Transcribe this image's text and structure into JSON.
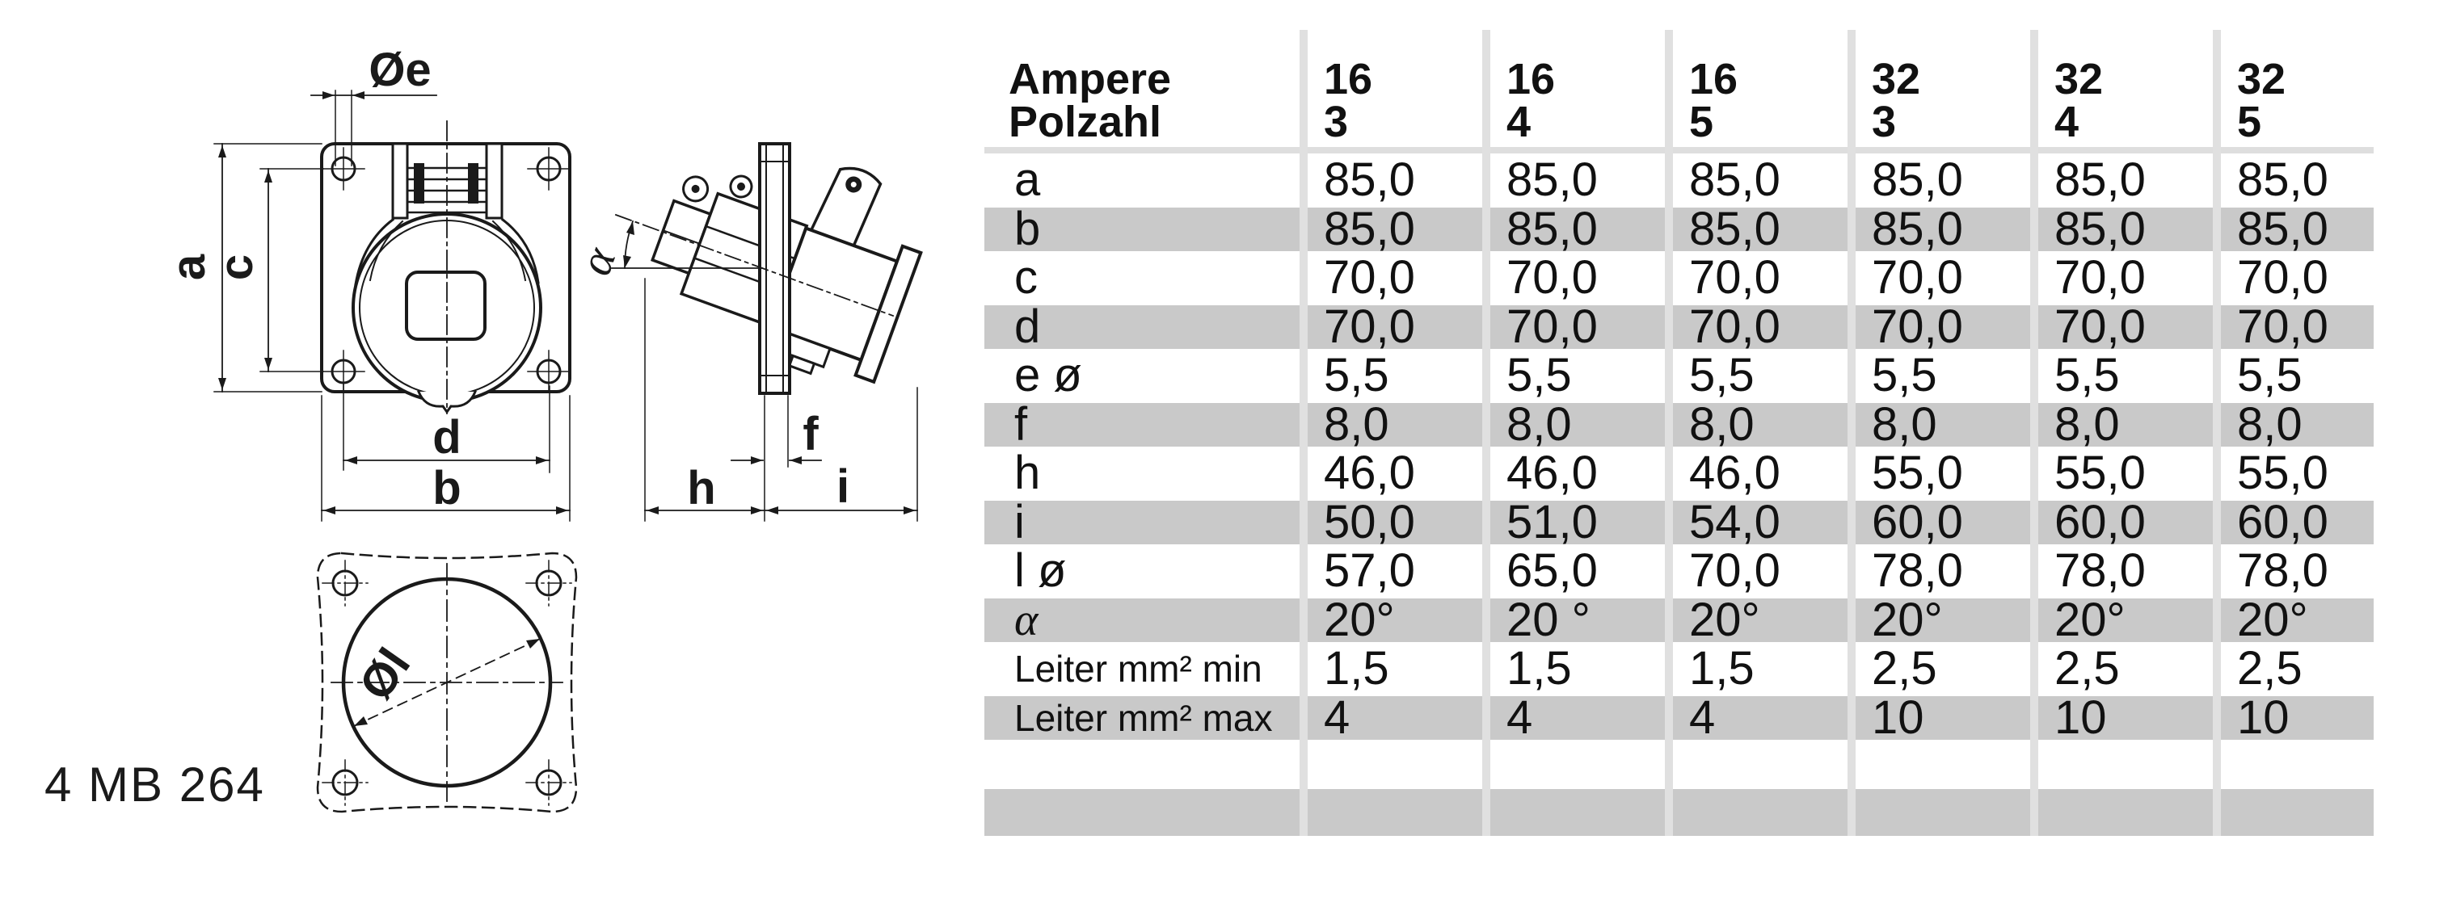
{
  "part_code": "4 MB 264",
  "drawing": {
    "labels": {
      "dia_e": "Øe",
      "a": "a",
      "c": "c",
      "d": "d",
      "b": "b",
      "alpha": "α",
      "f": "f",
      "h": "h",
      "i": "i",
      "dia_l": "Øl"
    }
  },
  "table": {
    "header": {
      "row1": "Ampere",
      "row2": "Polzahl"
    },
    "columns": [
      {
        "ampere": "16",
        "polzahl": "3"
      },
      {
        "ampere": "16",
        "polzahl": "4"
      },
      {
        "ampere": "16",
        "polzahl": "5"
      },
      {
        "ampere": "32",
        "polzahl": "3"
      },
      {
        "ampere": "32",
        "polzahl": "4"
      },
      {
        "ampere": "32",
        "polzahl": "5"
      }
    ],
    "rows": [
      {
        "label": "a",
        "shaded": false,
        "serif": false,
        "values": [
          "85,0",
          "85,0",
          "85,0",
          "85,0",
          "85,0",
          "85,0"
        ]
      },
      {
        "label": "b",
        "shaded": true,
        "serif": false,
        "values": [
          "85,0",
          "85,0",
          "85,0",
          "85,0",
          "85,0",
          "85,0"
        ]
      },
      {
        "label": "c",
        "shaded": false,
        "serif": false,
        "values": [
          "70,0",
          "70,0",
          "70,0",
          "70,0",
          "70,0",
          "70,0"
        ]
      },
      {
        "label": "d",
        "shaded": true,
        "serif": false,
        "values": [
          "70,0",
          "70,0",
          "70,0",
          "70,0",
          "70,0",
          "70,0"
        ]
      },
      {
        "label": "e ø",
        "shaded": false,
        "serif": false,
        "values": [
          "5,5",
          "5,5",
          "5,5",
          "5,5",
          "5,5",
          "5,5"
        ]
      },
      {
        "label": "f",
        "shaded": true,
        "serif": false,
        "values": [
          "8,0",
          "8,0",
          "8,0",
          "8,0",
          "8,0",
          "8,0"
        ]
      },
      {
        "label": "h",
        "shaded": false,
        "serif": false,
        "values": [
          "46,0",
          "46,0",
          "46,0",
          "55,0",
          "55,0",
          "55,0"
        ]
      },
      {
        "label": "i",
        "shaded": true,
        "serif": false,
        "values": [
          "50,0",
          "51,0",
          "54,0",
          "60,0",
          "60,0",
          "60,0"
        ]
      },
      {
        "label": "l ø",
        "shaded": false,
        "serif": false,
        "values": [
          "57,0",
          "65,0",
          "70,0",
          "78,0",
          "78,0",
          "78,0"
        ]
      },
      {
        "label": "α",
        "shaded": true,
        "serif": true,
        "values": [
          "20°",
          "20 °",
          "20°",
          "20°",
          "20°",
          "20°"
        ]
      },
      {
        "label": "Leiter mm² min",
        "shaded": false,
        "serif": false,
        "values": [
          "1,5",
          "1,5",
          "1,5",
          "2,5",
          "2,5",
          "2,5"
        ]
      },
      {
        "label": "Leiter mm² max",
        "shaded": true,
        "serif": false,
        "values": [
          "4",
          "4",
          "4",
          "10",
          "10",
          "10"
        ]
      }
    ]
  },
  "colors": {
    "row_shade": "#c9c9c9",
    "separator": "#e0e0e0",
    "header_rule": "#dedede",
    "ink": "#1a1a1a"
  }
}
